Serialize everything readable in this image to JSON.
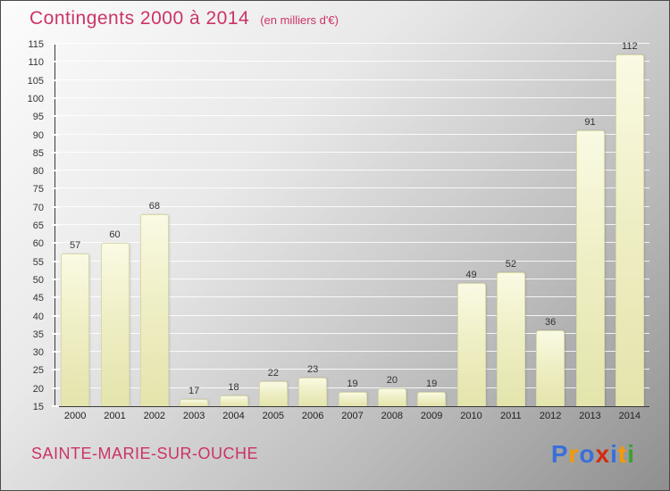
{
  "title": {
    "text": "Contingents 2000 à 2014",
    "subtitle": "(en milliers d'€)"
  },
  "footer": {
    "location": "SAINTE-MARIE-SUR-OUCHE"
  },
  "logo": {
    "name": "Proxiti",
    "letters": [
      {
        "ch": "P",
        "color": "#3a6fd8"
      },
      {
        "ch": "r",
        "color": "#f59a00"
      },
      {
        "ch": "o",
        "color": "#3a6fd8"
      },
      {
        "ch": "x",
        "color": "#d42a10"
      },
      {
        "ch": "i",
        "color": "#3a6fd8"
      },
      {
        "ch": "t",
        "color": "#f59a00"
      },
      {
        "ch": "i",
        "color": "#3aa12e"
      }
    ]
  },
  "colors": {
    "accent": "#cc3366",
    "bar_fill_top": "#fafae4",
    "bar_fill_bottom": "#e4e4ac",
    "gridline": "#ffffff",
    "axis": "#3a3a3a",
    "background_light": "#fcfcfc",
    "background_dark": "#8f8f8f"
  },
  "chart_data": {
    "type": "bar",
    "title": "Contingents 2000 à 2014",
    "subtitle": "(en milliers d'€)",
    "categories": [
      "2000",
      "2001",
      "2002",
      "2003",
      "2004",
      "2005",
      "2006",
      "2007",
      "2008",
      "2009",
      "2010",
      "2011",
      "2012",
      "2013",
      "2014"
    ],
    "values": [
      57,
      60,
      68,
      17,
      18,
      22,
      23,
      19,
      20,
      19,
      49,
      52,
      36,
      91,
      112
    ],
    "xlabel": "",
    "ylabel": "",
    "ylim": [
      15,
      115
    ],
    "ytick_step": 5,
    "grid": true,
    "legend": false,
    "value_labels": true
  }
}
